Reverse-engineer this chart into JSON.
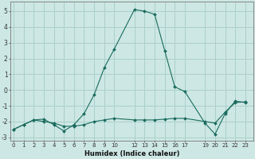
{
  "xlabel": "Humidex (Indice chaleur)",
  "background_color": "#cde8e4",
  "grid_color": "#aad0cc",
  "line_color": "#1a6b5e",
  "line1_x": [
    0,
    1,
    2,
    3,
    4,
    5,
    6,
    7,
    8,
    9,
    10,
    12,
    13,
    14,
    15,
    16,
    17,
    19,
    20,
    21,
    22,
    23
  ],
  "line1_y": [
    -2.5,
    -2.2,
    -1.9,
    -1.85,
    -2.2,
    -2.6,
    -2.2,
    -1.5,
    -0.3,
    1.4,
    2.6,
    5.1,
    5.0,
    4.8,
    2.5,
    0.2,
    -0.1,
    -2.1,
    -2.8,
    -1.5,
    -0.7,
    -0.8
  ],
  "line2_x": [
    0,
    1,
    2,
    3,
    4,
    5,
    6,
    7,
    8,
    9,
    10,
    12,
    13,
    14,
    15,
    16,
    17,
    19,
    20,
    21,
    22,
    23
  ],
  "line2_y": [
    -2.5,
    -2.2,
    -1.9,
    -2.0,
    -2.1,
    -2.3,
    -2.3,
    -2.2,
    -2.0,
    -1.9,
    -1.8,
    -1.9,
    -1.9,
    -1.9,
    -1.85,
    -1.8,
    -1.8,
    -2.0,
    -2.1,
    -1.4,
    -0.8,
    -0.75
  ],
  "ylim": [
    -3.2,
    5.6
  ],
  "yticks": [
    -3,
    -2,
    -1,
    0,
    1,
    2,
    3,
    4,
    5
  ],
  "xticks": [
    0,
    1,
    2,
    3,
    4,
    5,
    6,
    7,
    8,
    9,
    10,
    12,
    13,
    14,
    15,
    16,
    17,
    19,
    20,
    21,
    22,
    23
  ],
  "xlim": [
    -0.3,
    23.8
  ]
}
